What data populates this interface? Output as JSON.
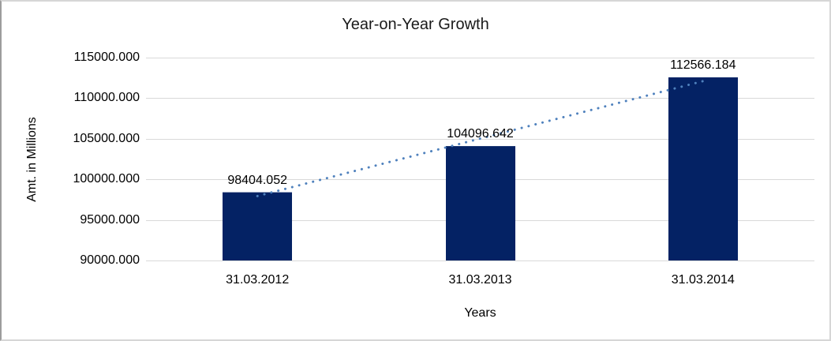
{
  "chart": {
    "colors": {
      "bar": "#042264",
      "trendline": "#4f81bd",
      "gridline": "#d9d9d9",
      "label_text": "#000000",
      "title_text": "#1a1a1a",
      "background": "#ffffff"
    }
  },
  "chart_data": {
    "type": "bar",
    "title": "Year-on-Year Growth",
    "xlabel": "Years",
    "ylabel": "Amt. in Millions",
    "categories": [
      "31.03.2012",
      "31.03.2013",
      "31.03.2014"
    ],
    "values": [
      98404.052,
      104096.642,
      112566.184
    ],
    "data_labels": [
      "98404.052",
      "104096.642",
      "112566.184"
    ],
    "ylim": [
      90000,
      115000
    ],
    "y_tick_step": 5000,
    "y_ticks": [
      {
        "value": 90000,
        "label": "90000.000"
      },
      {
        "value": 95000,
        "label": "95000.000"
      },
      {
        "value": 100000,
        "label": "100000.000"
      },
      {
        "value": 105000,
        "label": "105000.000"
      },
      {
        "value": 110000,
        "label": "110000.000"
      },
      {
        "value": 115000,
        "label": "115000.000"
      }
    ],
    "grid": true,
    "legend": false,
    "series_name": "",
    "trendline": {
      "type": "linear",
      "style": "dotted",
      "spans": "first-to-last-category"
    }
  }
}
